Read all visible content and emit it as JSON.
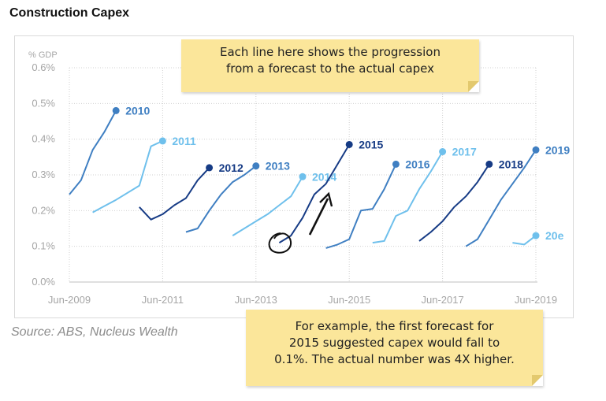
{
  "title": "Construction Capex",
  "source": "Source: ABS, Nucleus Wealth",
  "note_top": {
    "line1": "Each line here shows the progression",
    "line2": "from a forecast to the actual capex"
  },
  "note_bottom": {
    "line1": "For example, the first forecast for",
    "line2": "2015 suggested capex would fall to",
    "line3": "0.1%. The actual number was 4X higher."
  },
  "chart_data": {
    "type": "line",
    "ylabel": "% GDP",
    "ylim": [
      0.0,
      0.6
    ],
    "y_ticks": [
      "0.0%",
      "0.1%",
      "0.2%",
      "0.3%",
      "0.4%",
      "0.5%",
      "0.6%"
    ],
    "x_ticks": [
      "Jun-2009",
      "Jun-2011",
      "Jun-2013",
      "Jun-2015",
      "Jun-2017",
      "Jun-2019"
    ],
    "grid": "dotted",
    "series": [
      {
        "name": "2010",
        "color": "#3f7fc2",
        "x": [
          2009.0,
          2009.25,
          2009.5,
          2009.75,
          2010.0
        ],
        "y": [
          0.245,
          0.285,
          0.37,
          0.42,
          0.48
        ]
      },
      {
        "name": "2011",
        "color": "#6fc0ec",
        "x": [
          2009.5,
          2010.0,
          2010.5,
          2010.75,
          2011.0
        ],
        "y": [
          0.195,
          0.23,
          0.27,
          0.38,
          0.395
        ]
      },
      {
        "name": "2012",
        "color": "#163b85",
        "x": [
          2010.5,
          2010.75,
          2011.0,
          2011.25,
          2011.5,
          2011.75,
          2012.0
        ],
        "y": [
          0.21,
          0.175,
          0.19,
          0.215,
          0.235,
          0.285,
          0.32
        ]
      },
      {
        "name": "2013",
        "color": "#3f7fc2",
        "x": [
          2011.5,
          2011.75,
          2012.0,
          2012.25,
          2012.5,
          2012.75,
          2013.0
        ],
        "y": [
          0.14,
          0.15,
          0.2,
          0.245,
          0.28,
          0.3,
          0.325
        ]
      },
      {
        "name": "2014",
        "color": "#6fc0ec",
        "x": [
          2012.5,
          2012.75,
          2013.0,
          2013.25,
          2013.5,
          2013.75,
          2014.0
        ],
        "y": [
          0.13,
          0.15,
          0.17,
          0.19,
          0.215,
          0.24,
          0.295
        ]
      },
      {
        "name": "2015",
        "color": "#163b85",
        "x": [
          2013.5,
          2013.75,
          2014.0,
          2014.25,
          2014.5,
          2014.75,
          2015.0
        ],
        "y": [
          0.11,
          0.13,
          0.18,
          0.245,
          0.275,
          0.33,
          0.385
        ]
      },
      {
        "name": "2016",
        "color": "#3f7fc2",
        "x": [
          2014.5,
          2014.75,
          2015.0,
          2015.25,
          2015.5,
          2015.75,
          2016.0
        ],
        "y": [
          0.095,
          0.105,
          0.12,
          0.2,
          0.205,
          0.26,
          0.33
        ]
      },
      {
        "name": "2017",
        "color": "#6fc0ec",
        "x": [
          2015.5,
          2015.75,
          2016.0,
          2016.25,
          2016.5,
          2016.75,
          2017.0
        ],
        "y": [
          0.11,
          0.115,
          0.185,
          0.2,
          0.26,
          0.31,
          0.365
        ]
      },
      {
        "name": "2018",
        "color": "#163b85",
        "x": [
          2016.5,
          2016.75,
          2017.0,
          2017.25,
          2017.5,
          2017.75,
          2018.0
        ],
        "y": [
          0.115,
          0.14,
          0.17,
          0.21,
          0.24,
          0.28,
          0.33
        ]
      },
      {
        "name": "2019",
        "color": "#3f7fc2",
        "x": [
          2017.5,
          2017.75,
          2018.0,
          2018.25,
          2018.5,
          2018.75,
          2019.0
        ],
        "y": [
          0.1,
          0.12,
          0.175,
          0.23,
          0.275,
          0.32,
          0.37
        ]
      },
      {
        "name": "20e",
        "color": "#6fc0ec",
        "x": [
          2018.5,
          2018.75,
          2019.0
        ],
        "y": [
          0.11,
          0.105,
          0.13
        ]
      }
    ]
  }
}
